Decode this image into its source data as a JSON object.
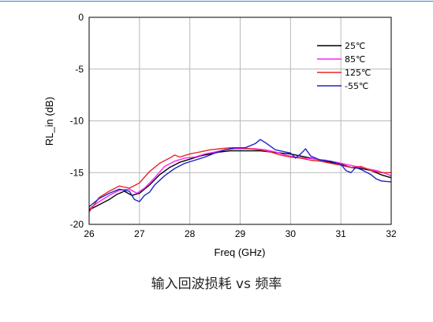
{
  "chart_data": {
    "type": "line",
    "title": "",
    "xlabel": "Freq (GHz)",
    "ylabel": "RL_in (dB)",
    "xlim": [
      26,
      32
    ],
    "ylim": [
      -20,
      0
    ],
    "xticks": [
      26,
      27,
      28,
      29,
      30,
      31,
      32
    ],
    "yticks": [
      0,
      -5,
      -10,
      -15,
      -20
    ],
    "grid": true,
    "legend_position": "top-right",
    "series": [
      {
        "name": "25℃",
        "color": "#000000",
        "x": [
          26,
          26.2,
          26.4,
          26.55,
          26.7,
          26.85,
          27,
          27.2,
          27.4,
          27.6,
          27.8,
          28,
          28.2,
          28.4,
          28.6,
          28.8,
          29,
          29.2,
          29.4,
          29.6,
          29.8,
          30,
          30.2,
          30.4,
          30.6,
          30.8,
          31,
          31.2,
          31.4,
          31.6,
          31.8,
          32
        ],
        "y": [
          -18.6,
          -18.1,
          -17.6,
          -17.1,
          -16.8,
          -17.2,
          -17.0,
          -16.2,
          -15.2,
          -14.5,
          -14.0,
          -13.7,
          -13.4,
          -13.2,
          -13.0,
          -12.9,
          -12.9,
          -12.9,
          -12.9,
          -13.0,
          -13.1,
          -13.2,
          -13.4,
          -13.6,
          -13.8,
          -14.0,
          -14.2,
          -14.5,
          -14.6,
          -14.8,
          -15.2,
          -15.5
        ]
      },
      {
        "name": "85℃",
        "color": "#ff22ff",
        "x": [
          26,
          26.2,
          26.4,
          26.6,
          26.8,
          26.95,
          27.1,
          27.3,
          27.5,
          27.7,
          27.9,
          28.1,
          28.3,
          28.5,
          28.7,
          28.9,
          29.1,
          29.3,
          29.5,
          29.7,
          29.9,
          30.1,
          30.3,
          30.5,
          30.7,
          30.9,
          31.1,
          31.3,
          31.5,
          31.7,
          31.9,
          32
        ],
        "y": [
          -18.5,
          -17.8,
          -17.2,
          -16.7,
          -16.6,
          -17.0,
          -16.5,
          -15.5,
          -14.4,
          -13.9,
          -13.6,
          -13.5,
          -13.2,
          -13.0,
          -12.8,
          -12.7,
          -12.7,
          -12.7,
          -12.8,
          -13.0,
          -13.3,
          -13.5,
          -13.6,
          -13.7,
          -13.8,
          -14.0,
          -14.2,
          -14.4,
          -14.6,
          -14.8,
          -15.1,
          -15.3
        ]
      },
      {
        "name": "125℃",
        "color": "#e8262a",
        "x": [
          26,
          26.2,
          26.4,
          26.6,
          26.8,
          27,
          27.2,
          27.4,
          27.6,
          27.7,
          27.8,
          28,
          28.2,
          28.4,
          28.6,
          28.8,
          29,
          29.2,
          29.4,
          29.6,
          29.8,
          30,
          30.2,
          30.4,
          30.6,
          30.8,
          31,
          31.2,
          31.4,
          31.6,
          31.8,
          32
        ],
        "y": [
          -18.8,
          -17.4,
          -16.8,
          -16.3,
          -16.5,
          -16.0,
          -14.9,
          -14.1,
          -13.6,
          -13.3,
          -13.5,
          -13.2,
          -13.0,
          -12.8,
          -12.7,
          -12.6,
          -12.6,
          -12.7,
          -12.8,
          -13.0,
          -13.3,
          -13.5,
          -13.6,
          -13.8,
          -13.9,
          -14.1,
          -14.3,
          -14.5,
          -14.4,
          -14.8,
          -15.0,
          -15.0
        ]
      },
      {
        "name": "-55℃",
        "color": "#1f24c8",
        "x": [
          26,
          26.2,
          26.4,
          26.6,
          26.8,
          26.9,
          27,
          27.1,
          27.2,
          27.3,
          27.5,
          27.7,
          27.9,
          28.1,
          28.3,
          28.5,
          28.7,
          28.9,
          29.1,
          29.3,
          29.4,
          29.5,
          29.7,
          29.9,
          30.0,
          30.1,
          30.2,
          30.3,
          30.4,
          30.6,
          30.8,
          31,
          31.1,
          31.2,
          31.3,
          31.4,
          31.6,
          31.7,
          31.8,
          32
        ],
        "y": [
          -18.3,
          -17.5,
          -17.0,
          -16.6,
          -16.8,
          -17.6,
          -17.8,
          -17.2,
          -16.9,
          -16.2,
          -15.3,
          -14.6,
          -14.1,
          -13.8,
          -13.5,
          -13.1,
          -12.8,
          -12.6,
          -12.6,
          -12.2,
          -11.8,
          -12.1,
          -12.8,
          -13.0,
          -13.1,
          -13.6,
          -13.2,
          -12.7,
          -13.4,
          -13.8,
          -13.9,
          -14.2,
          -14.8,
          -15.0,
          -14.5,
          -14.7,
          -15.2,
          -15.6,
          -15.8,
          -15.9
        ]
      }
    ]
  },
  "caption": "输入回波损耗 vs 频率"
}
